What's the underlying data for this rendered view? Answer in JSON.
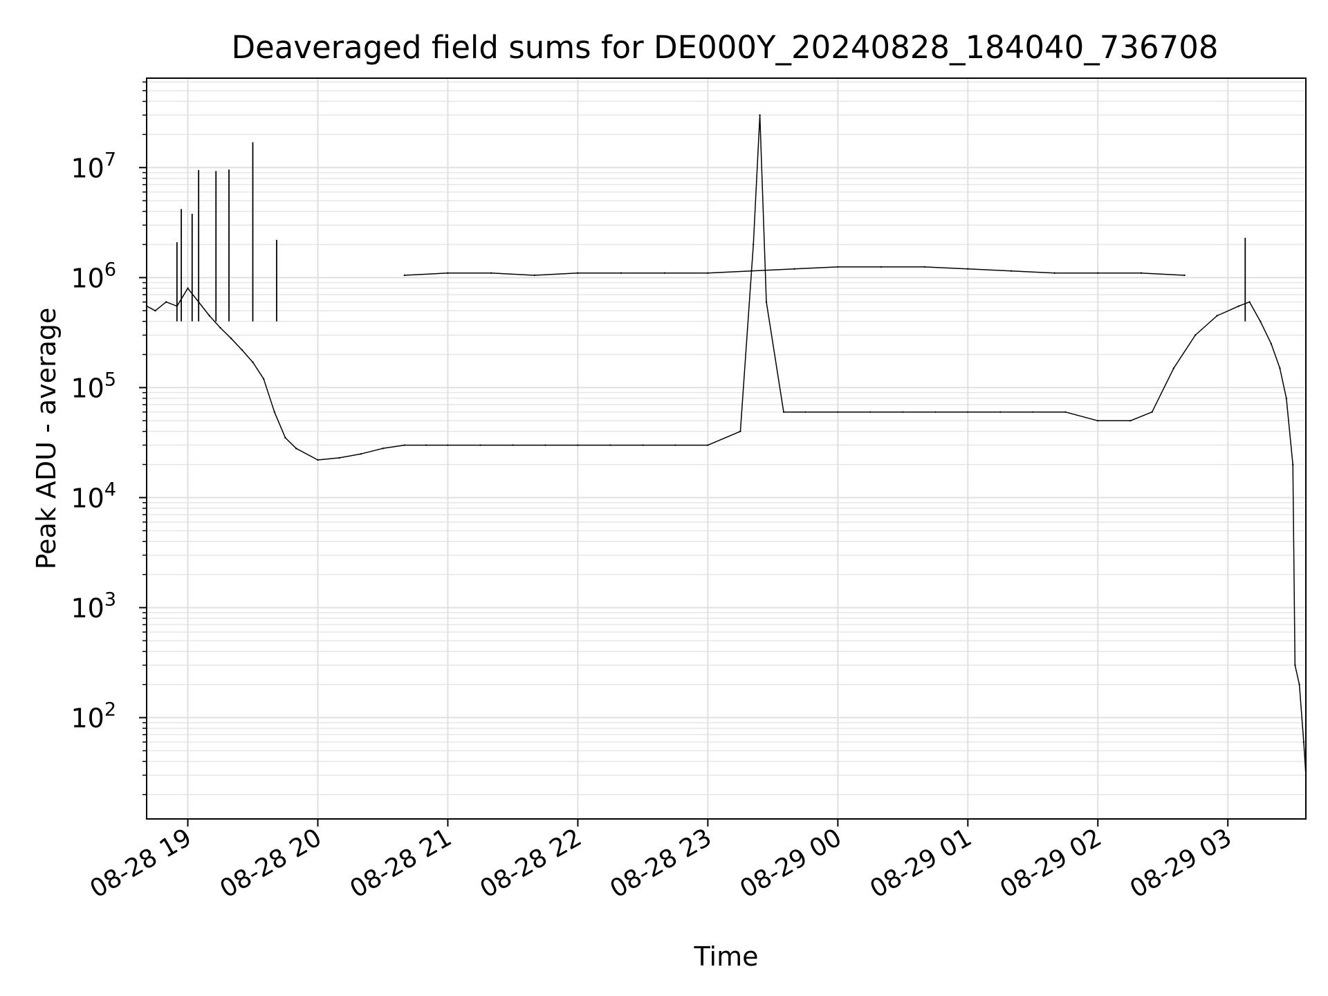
{
  "chart_data": {
    "type": "line",
    "title": "Deaveraged field sums for DE000Y_20240828_184040_736708",
    "xlabel": "Time",
    "ylabel": "Peak ADU - average",
    "yscale": "log",
    "xlim": [
      "2024-08-28 18:41",
      "2024-08-29 03:36"
    ],
    "ylim": [
      12,
      65000000
    ],
    "grid": true,
    "line_color": "#000000",
    "x_ticks": [
      {
        "label": "08-28 19",
        "time": "2024-08-28 19:00"
      },
      {
        "label": "08-28 20",
        "time": "2024-08-28 20:00"
      },
      {
        "label": "08-28 21",
        "time": "2024-08-28 21:00"
      },
      {
        "label": "08-28 22",
        "time": "2024-08-28 22:00"
      },
      {
        "label": "08-28 23",
        "time": "2024-08-28 23:00"
      },
      {
        "label": "08-29 00",
        "time": "2024-08-29 00:00"
      },
      {
        "label": "08-29 01",
        "time": "2024-08-29 01:00"
      },
      {
        "label": "08-29 02",
        "time": "2024-08-29 02:00"
      },
      {
        "label": "08-29 03",
        "time": "2024-08-29 03:00"
      }
    ],
    "y_ticks": [
      {
        "base": "10",
        "exp": "2",
        "value": 100
      },
      {
        "base": "10",
        "exp": "3",
        "value": 1000
      },
      {
        "base": "10",
        "exp": "4",
        "value": 10000
      },
      {
        "base": "10",
        "exp": "5",
        "value": 100000
      },
      {
        "base": "10",
        "exp": "6",
        "value": 1000000
      },
      {
        "base": "10",
        "exp": "7",
        "value": 10000000
      }
    ],
    "series": [
      {
        "x": [
          "2024-08-28 18:41",
          "2024-08-28 18:45",
          "2024-08-28 18:50",
          "2024-08-28 18:55",
          "2024-08-28 19:00",
          "2024-08-28 19:05",
          "2024-08-28 19:10",
          "2024-08-28 19:15",
          "2024-08-28 19:20",
          "2024-08-28 19:25",
          "2024-08-28 19:30",
          "2024-08-28 19:35",
          "2024-08-28 19:40",
          "2024-08-28 19:45",
          "2024-08-28 19:50",
          "2024-08-28 20:00",
          "2024-08-28 20:10",
          "2024-08-28 20:20",
          "2024-08-28 20:30",
          "2024-08-28 20:40",
          "2024-08-28 20:50",
          "2024-08-28 21:00",
          "2024-08-28 21:15",
          "2024-08-28 21:30",
          "2024-08-28 21:45",
          "2024-08-28 22:00",
          "2024-08-28 22:15",
          "2024-08-28 22:30",
          "2024-08-28 22:45",
          "2024-08-28 23:00",
          "2024-08-28 23:15",
          "2024-08-28 23:21",
          "2024-08-28 23:24",
          "2024-08-28 23:27",
          "2024-08-28 23:35",
          "2024-08-28 23:45",
          "2024-08-29 00:00",
          "2024-08-29 00:15",
          "2024-08-29 00:30",
          "2024-08-29 00:45",
          "2024-08-29 01:00",
          "2024-08-29 01:15",
          "2024-08-29 01:30",
          "2024-08-29 01:45",
          "2024-08-29 02:00",
          "2024-08-29 02:15",
          "2024-08-29 02:25",
          "2024-08-29 02:35",
          "2024-08-29 02:45",
          "2024-08-29 02:55",
          "2024-08-29 03:05",
          "2024-08-29 03:10",
          "2024-08-29 03:15",
          "2024-08-29 03:20",
          "2024-08-29 03:24",
          "2024-08-29 03:27",
          "2024-08-29 03:30",
          "2024-08-29 03:31",
          "2024-08-29 03:33",
          "2024-08-29 03:35",
          "2024-08-29 03:36"
        ],
        "y": [
          550000,
          500000,
          600000,
          550000,
          800000,
          600000,
          450000,
          350000,
          280000,
          220000,
          170000,
          120000,
          60000,
          35000,
          28000,
          22000,
          23000,
          25000,
          28000,
          30000,
          30000,
          30000,
          30000,
          30000,
          30000,
          30000,
          30000,
          30000,
          30000,
          30000,
          40000,
          2000000,
          30000000,
          600000,
          60000,
          60000,
          60000,
          60000,
          60000,
          60000,
          60000,
          60000,
          60000,
          60000,
          50000,
          50000,
          60000,
          150000,
          300000,
          450000,
          550000,
          600000,
          400000,
          250000,
          150000,
          80000,
          20000,
          300,
          200,
          60,
          30
        ]
      },
      {
        "x": [
          "2024-08-28 20:40",
          "2024-08-28 21:00",
          "2024-08-28 21:20",
          "2024-08-28 21:40",
          "2024-08-28 22:00",
          "2024-08-28 22:20",
          "2024-08-28 22:40",
          "2024-08-28 23:00",
          "2024-08-28 23:20",
          "2024-08-28 23:40",
          "2024-08-29 00:00",
          "2024-08-29 00:20",
          "2024-08-29 00:40",
          "2024-08-29 01:00",
          "2024-08-29 01:20",
          "2024-08-29 01:40",
          "2024-08-29 02:00",
          "2024-08-29 02:20",
          "2024-08-29 02:40"
        ],
        "y": [
          1050000,
          1100000,
          1100000,
          1050000,
          1100000,
          1100000,
          1100000,
          1100000,
          1150000,
          1200000,
          1250000,
          1250000,
          1250000,
          1200000,
          1150000,
          1100000,
          1100000,
          1100000,
          1050000
        ]
      }
    ],
    "spikes": [
      {
        "x": "2024-08-28 18:55",
        "y": 2100000
      },
      {
        "x": "2024-08-28 18:57",
        "y": 4200000
      },
      {
        "x": "2024-08-28 19:02",
        "y": 3800000
      },
      {
        "x": "2024-08-28 19:05",
        "y": 9500000
      },
      {
        "x": "2024-08-28 19:13",
        "y": 9300000
      },
      {
        "x": "2024-08-28 19:19",
        "y": 9600000
      },
      {
        "x": "2024-08-28 19:30",
        "y": 17000000
      },
      {
        "x": "2024-08-28 19:41",
        "y": 2200000
      },
      {
        "x": "2024-08-29 03:08",
        "y": 2300000
      }
    ]
  }
}
